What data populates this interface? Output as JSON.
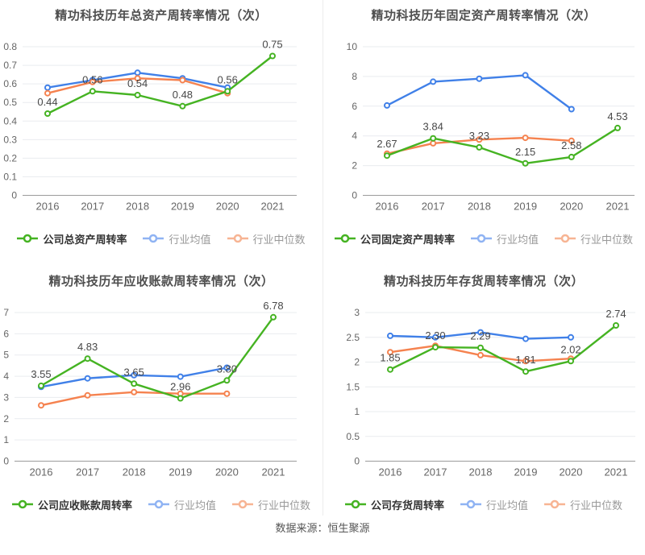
{
  "footer": {
    "source": "数据来源：恒生聚源"
  },
  "colors": {
    "company": "#45b322",
    "industry_mean": "#4080e8",
    "industry_median": "#f5824f",
    "legend_mean": "#8fb3f3",
    "legend_median": "#f7b493",
    "grid": "#e9ecef",
    "axis": "#9b9b9b",
    "tick": "#666666",
    "label": "#474747"
  },
  "chart_data": [
    {
      "type": "line",
      "title": "精功科技历年总资产周转率情况（次）",
      "categories": [
        "2016",
        "2017",
        "2018",
        "2019",
        "2020",
        "2021"
      ],
      "ylim": [
        0,
        0.8
      ],
      "yticks": [
        "0",
        "0.1",
        "0.2",
        "0.3",
        "0.4",
        "0.5",
        "0.6",
        "0.7",
        "0.8"
      ],
      "grid": true,
      "legend_position": "bottom",
      "series": [
        {
          "name": "公司总资产周转率",
          "values": [
            0.44,
            0.56,
            0.54,
            0.48,
            0.56,
            0.75
          ]
        },
        {
          "name": "行业均值",
          "values": [
            0.58,
            0.62,
            0.66,
            0.63,
            0.58,
            null
          ]
        },
        {
          "name": "行业中位数",
          "values": [
            0.55,
            0.61,
            0.63,
            0.62,
            0.55,
            null
          ]
        }
      ],
      "point_labels": [
        "0.44",
        "0.56",
        "0.54",
        "0.48",
        "0.56",
        "0.75"
      ]
    },
    {
      "type": "line",
      "title": "精功科技历年固定资产周转率情况（次）",
      "categories": [
        "2016",
        "2017",
        "2018",
        "2019",
        "2020",
        "2021"
      ],
      "ylim": [
        0,
        10
      ],
      "yticks": [
        "0",
        "2",
        "4",
        "6",
        "8",
        "10"
      ],
      "grid": true,
      "legend_position": "bottom",
      "series": [
        {
          "name": "公司固定资产周转率",
          "values": [
            2.67,
            3.84,
            3.23,
            2.15,
            2.58,
            4.53
          ]
        },
        {
          "name": "行业均值",
          "values": [
            6.05,
            7.65,
            7.85,
            8.08,
            5.8,
            null
          ]
        },
        {
          "name": "行业中位数",
          "values": [
            2.8,
            3.5,
            3.75,
            3.87,
            3.67,
            null
          ]
        }
      ],
      "point_labels": [
        "2.67",
        "3.84",
        "3.23",
        "2.15",
        "2.58",
        "4.53"
      ]
    },
    {
      "type": "line",
      "title": "精功科技历年应收账款周转率情况（次）",
      "categories": [
        "2016",
        "2017",
        "2018",
        "2019",
        "2020",
        "2021"
      ],
      "ylim": [
        0,
        7
      ],
      "yticks": [
        "0",
        "1",
        "2",
        "3",
        "4",
        "5",
        "6",
        "7"
      ],
      "grid": true,
      "legend_position": "bottom",
      "series": [
        {
          "name": "公司应收账款周转率",
          "values": [
            3.55,
            4.83,
            3.65,
            2.96,
            3.8,
            6.78
          ]
        },
        {
          "name": "行业均值",
          "values": [
            3.5,
            3.9,
            4.05,
            3.98,
            4.4,
            null
          ]
        },
        {
          "name": "行业中位数",
          "values": [
            2.63,
            3.1,
            3.25,
            3.18,
            3.18,
            null
          ]
        }
      ],
      "point_labels": [
        "3.55",
        "4.83",
        "3.65",
        "2.96",
        "3.80",
        "6.78"
      ]
    },
    {
      "type": "line",
      "title": "精功科技历年存货周转率情况（次）",
      "categories": [
        "2016",
        "2017",
        "2018",
        "2019",
        "2020",
        "2021"
      ],
      "ylim": [
        0,
        3
      ],
      "yticks": [
        "0",
        "0.5",
        "1",
        "1.5",
        "2",
        "2.5",
        "3"
      ],
      "grid": true,
      "legend_position": "bottom",
      "series": [
        {
          "name": "公司存货周转率",
          "values": [
            1.85,
            2.3,
            2.29,
            1.81,
            2.02,
            2.74
          ]
        },
        {
          "name": "行业均值",
          "values": [
            2.53,
            2.5,
            2.6,
            2.47,
            2.5,
            null
          ]
        },
        {
          "name": "行业中位数",
          "values": [
            2.2,
            2.33,
            2.14,
            2.02,
            2.07,
            null
          ]
        }
      ],
      "point_labels": [
        "1.85",
        "2.30",
        "2.29",
        "1.81",
        "2.02",
        "2.74"
      ]
    }
  ]
}
